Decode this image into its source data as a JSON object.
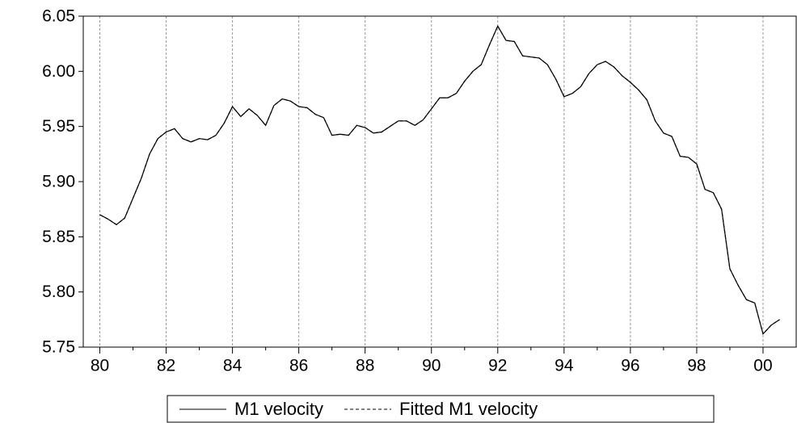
{
  "chart_data": {
    "type": "line",
    "x": [
      1980,
      1980.25,
      1980.5,
      1980.75,
      1981,
      1981.25,
      1981.5,
      1981.75,
      1982,
      1982.25,
      1982.5,
      1982.75,
      1983,
      1983.25,
      1983.5,
      1983.75,
      1984,
      1984.25,
      1984.5,
      1984.75,
      1985,
      1985.25,
      1985.5,
      1985.75,
      1986,
      1986.25,
      1986.5,
      1986.75,
      1987,
      1987.25,
      1987.5,
      1987.75,
      1988,
      1988.25,
      1988.5,
      1988.75,
      1989,
      1989.25,
      1989.5,
      1989.75,
      1990,
      1990.25,
      1990.5,
      1990.75,
      1991,
      1991.25,
      1991.5,
      1991.75,
      1992,
      1992.25,
      1992.5,
      1992.75,
      1993,
      1993.25,
      1993.5,
      1993.75,
      1994,
      1994.25,
      1994.5,
      1994.75,
      1995,
      1995.25,
      1995.5,
      1995.75,
      1996,
      1996.25,
      1996.5,
      1996.75,
      1997,
      1997.25,
      1997.5,
      1997.75,
      1998,
      1998.25,
      1998.5,
      1998.75,
      1999,
      1999.25,
      1999.5,
      1999.75,
      2000,
      2000.25,
      2000.5
    ],
    "series": [
      {
        "name": "M1 velocity",
        "color": "#000000",
        "dash": "solid",
        "values": [
          5.87,
          5.866,
          5.861,
          5.867,
          5.885,
          5.903,
          5.925,
          5.939,
          5.945,
          5.948,
          5.939,
          5.936,
          5.939,
          5.938,
          5.942,
          5.953,
          5.968,
          5.959,
          5.966,
          5.96,
          5.951,
          5.969,
          5.975,
          5.973,
          5.968,
          5.967,
          5.961,
          5.958,
          5.942,
          5.943,
          5.942,
          5.951,
          5.949,
          5.944,
          5.945,
          5.95,
          5.955,
          5.955,
          5.951,
          5.956,
          5.966,
          5.976,
          5.976,
          5.98,
          5.991,
          6.0,
          6.006,
          6.024,
          6.041,
          6.028,
          6.027,
          6.014,
          6.013,
          6.012,
          6.006,
          5.993,
          5.977,
          5.98,
          5.986,
          5.998,
          6.006,
          6.009,
          6.004,
          5.996,
          5.99,
          5.983,
          5.974,
          5.955,
          5.944,
          5.941,
          5.923,
          5.922,
          5.916,
          5.893,
          5.89,
          5.875,
          5.821,
          5.806,
          5.793,
          5.79,
          5.762,
          5.77,
          5.775
        ]
      },
      {
        "name": "Fitted M1 velocity",
        "color": "#000000",
        "dash": "dashed",
        "values": [
          5.87,
          5.866,
          5.861,
          5.867,
          5.885,
          5.903,
          5.925,
          5.939,
          5.945,
          5.948,
          5.939,
          5.936,
          5.939,
          5.938,
          5.942,
          5.953,
          5.968,
          5.959,
          5.966,
          5.96,
          5.951,
          5.969,
          5.975,
          5.973,
          5.968,
          5.967,
          5.961,
          5.958,
          5.942,
          5.943,
          5.942,
          5.951,
          5.949,
          5.944,
          5.945,
          5.95,
          5.955,
          5.955,
          5.951,
          5.956,
          5.966,
          5.976,
          5.976,
          5.98,
          5.991,
          6.0,
          6.006,
          6.024,
          6.041,
          6.028,
          6.027,
          6.014,
          6.013,
          6.012,
          6.006,
          5.993,
          5.977,
          5.98,
          5.986,
          5.998,
          6.006,
          6.009,
          6.004,
          5.996,
          5.99,
          5.983,
          5.974,
          5.955,
          5.944,
          5.941,
          5.923,
          5.922,
          5.916,
          5.893,
          5.89,
          5.875,
          5.821,
          5.806,
          5.793,
          5.79,
          5.762,
          5.77,
          5.775
        ]
      }
    ],
    "xlim": [
      1979.5,
      2001
    ],
    "xticks": [
      {
        "value": 1980,
        "label": "80"
      },
      {
        "value": 1982,
        "label": "82"
      },
      {
        "value": 1984,
        "label": "84"
      },
      {
        "value": 1986,
        "label": "86"
      },
      {
        "value": 1988,
        "label": "88"
      },
      {
        "value": 1990,
        "label": "90"
      },
      {
        "value": 1992,
        "label": "92"
      },
      {
        "value": 1994,
        "label": "94"
      },
      {
        "value": 1996,
        "label": "96"
      },
      {
        "value": 1998,
        "label": "98"
      },
      {
        "value": 2000,
        "label": "00"
      }
    ],
    "ylim": [
      5.75,
      6.05
    ],
    "yticks": [
      5.75,
      {
        "value": 5.8,
        "label": "5.80"
      },
      5.85,
      {
        "value": 5.9,
        "label": "5.90"
      },
      5.95,
      {
        "value": 6,
        "label": "6.00"
      },
      6.05
    ],
    "grid": "x",
    "legend": "bottom"
  }
}
